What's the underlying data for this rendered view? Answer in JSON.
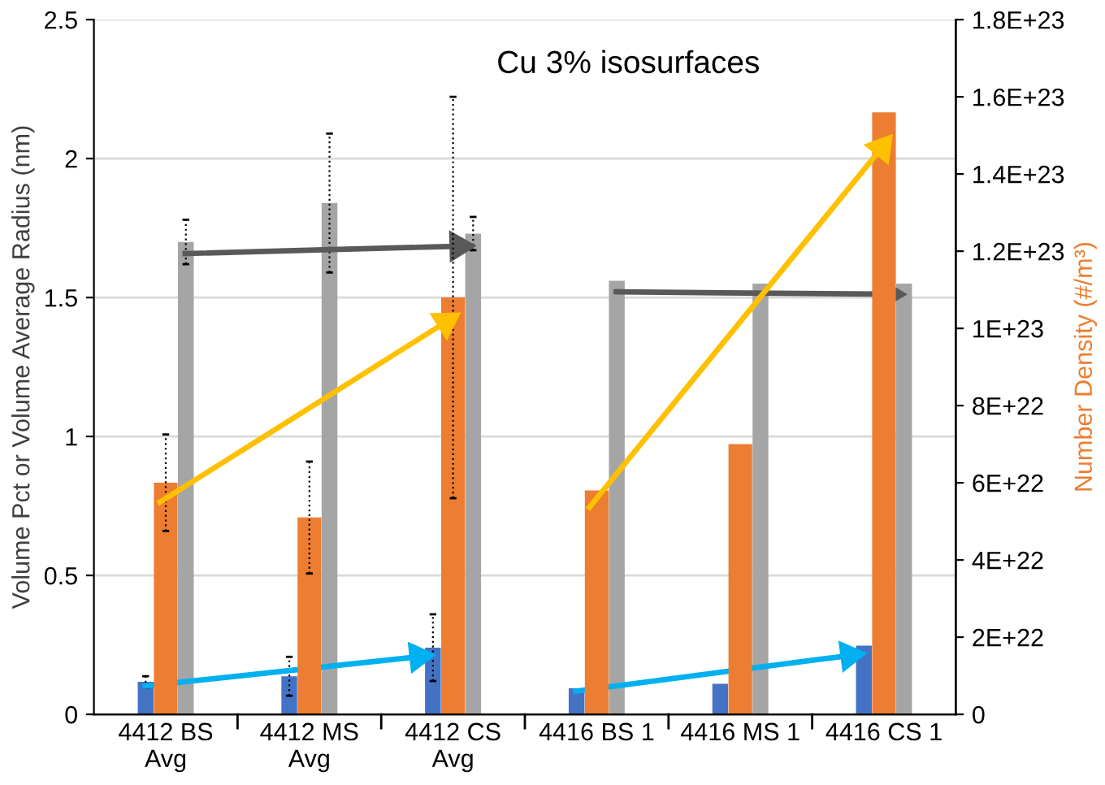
{
  "chart_data": {
    "type": "bar",
    "title": "Cu 3% isosurfaces",
    "ylabel": "Volume Pct or Volume Average Radius (nm)",
    "y2label": "Number Density (#/m³)",
    "categories": [
      "4412 BS Avg",
      "4412 MS Avg",
      "4412 CS Avg",
      "4416 BS 1",
      "4416 MS 1",
      "4416 CS 1"
    ],
    "series": [
      {
        "color": "#4472c4",
        "values": [
          0.117,
          0.137,
          0.24,
          0.094,
          0.11,
          0.247
        ],
        "errors": [
          0.02,
          0.07,
          0.12,
          null,
          null,
          null
        ]
      },
      {
        "color": "#ed7d31",
        "axis": "y2",
        "values": [
          6e+22,
          5.1e+22,
          1.08e+23,
          5.8e+22,
          7e+22,
          1.56e+23
        ],
        "errors": [
          1.25e+22,
          1.45e+22,
          5.2e+22,
          null,
          null,
          null
        ]
      },
      {
        "color": "#a5a5a5",
        "values": [
          1.7,
          1.84,
          1.73,
          1.56,
          1.55,
          1.55
        ],
        "errors": [
          0.08,
          0.25,
          0.06,
          null,
          null,
          null
        ]
      }
    ],
    "ylim": [
      0,
      2.5
    ],
    "yticks": [
      0,
      0.5,
      1,
      1.5,
      2,
      2.5
    ],
    "y2lim": [
      0,
      1.8e+23
    ],
    "y2ticks": [
      0,
      {
        "value": 2e+22,
        "label": "2E+22"
      },
      {
        "value": 4e+22,
        "label": "4E+22"
      },
      {
        "value": 6e+22,
        "label": "6E+22"
      },
      {
        "value": 8e+22,
        "label": "8E+22"
      },
      {
        "value": 1e+23,
        "label": "1E+23"
      },
      {
        "value": 1.2e+23,
        "label": "1.2E+23"
      },
      {
        "value": 1.4e+23,
        "label": "1.4E+23"
      },
      {
        "value": 1.6e+23,
        "label": "1.6E+23"
      },
      {
        "value": 1.8e+23,
        "label": "1.8E+23"
      }
    ],
    "grid": "y",
    "legend": false
  }
}
